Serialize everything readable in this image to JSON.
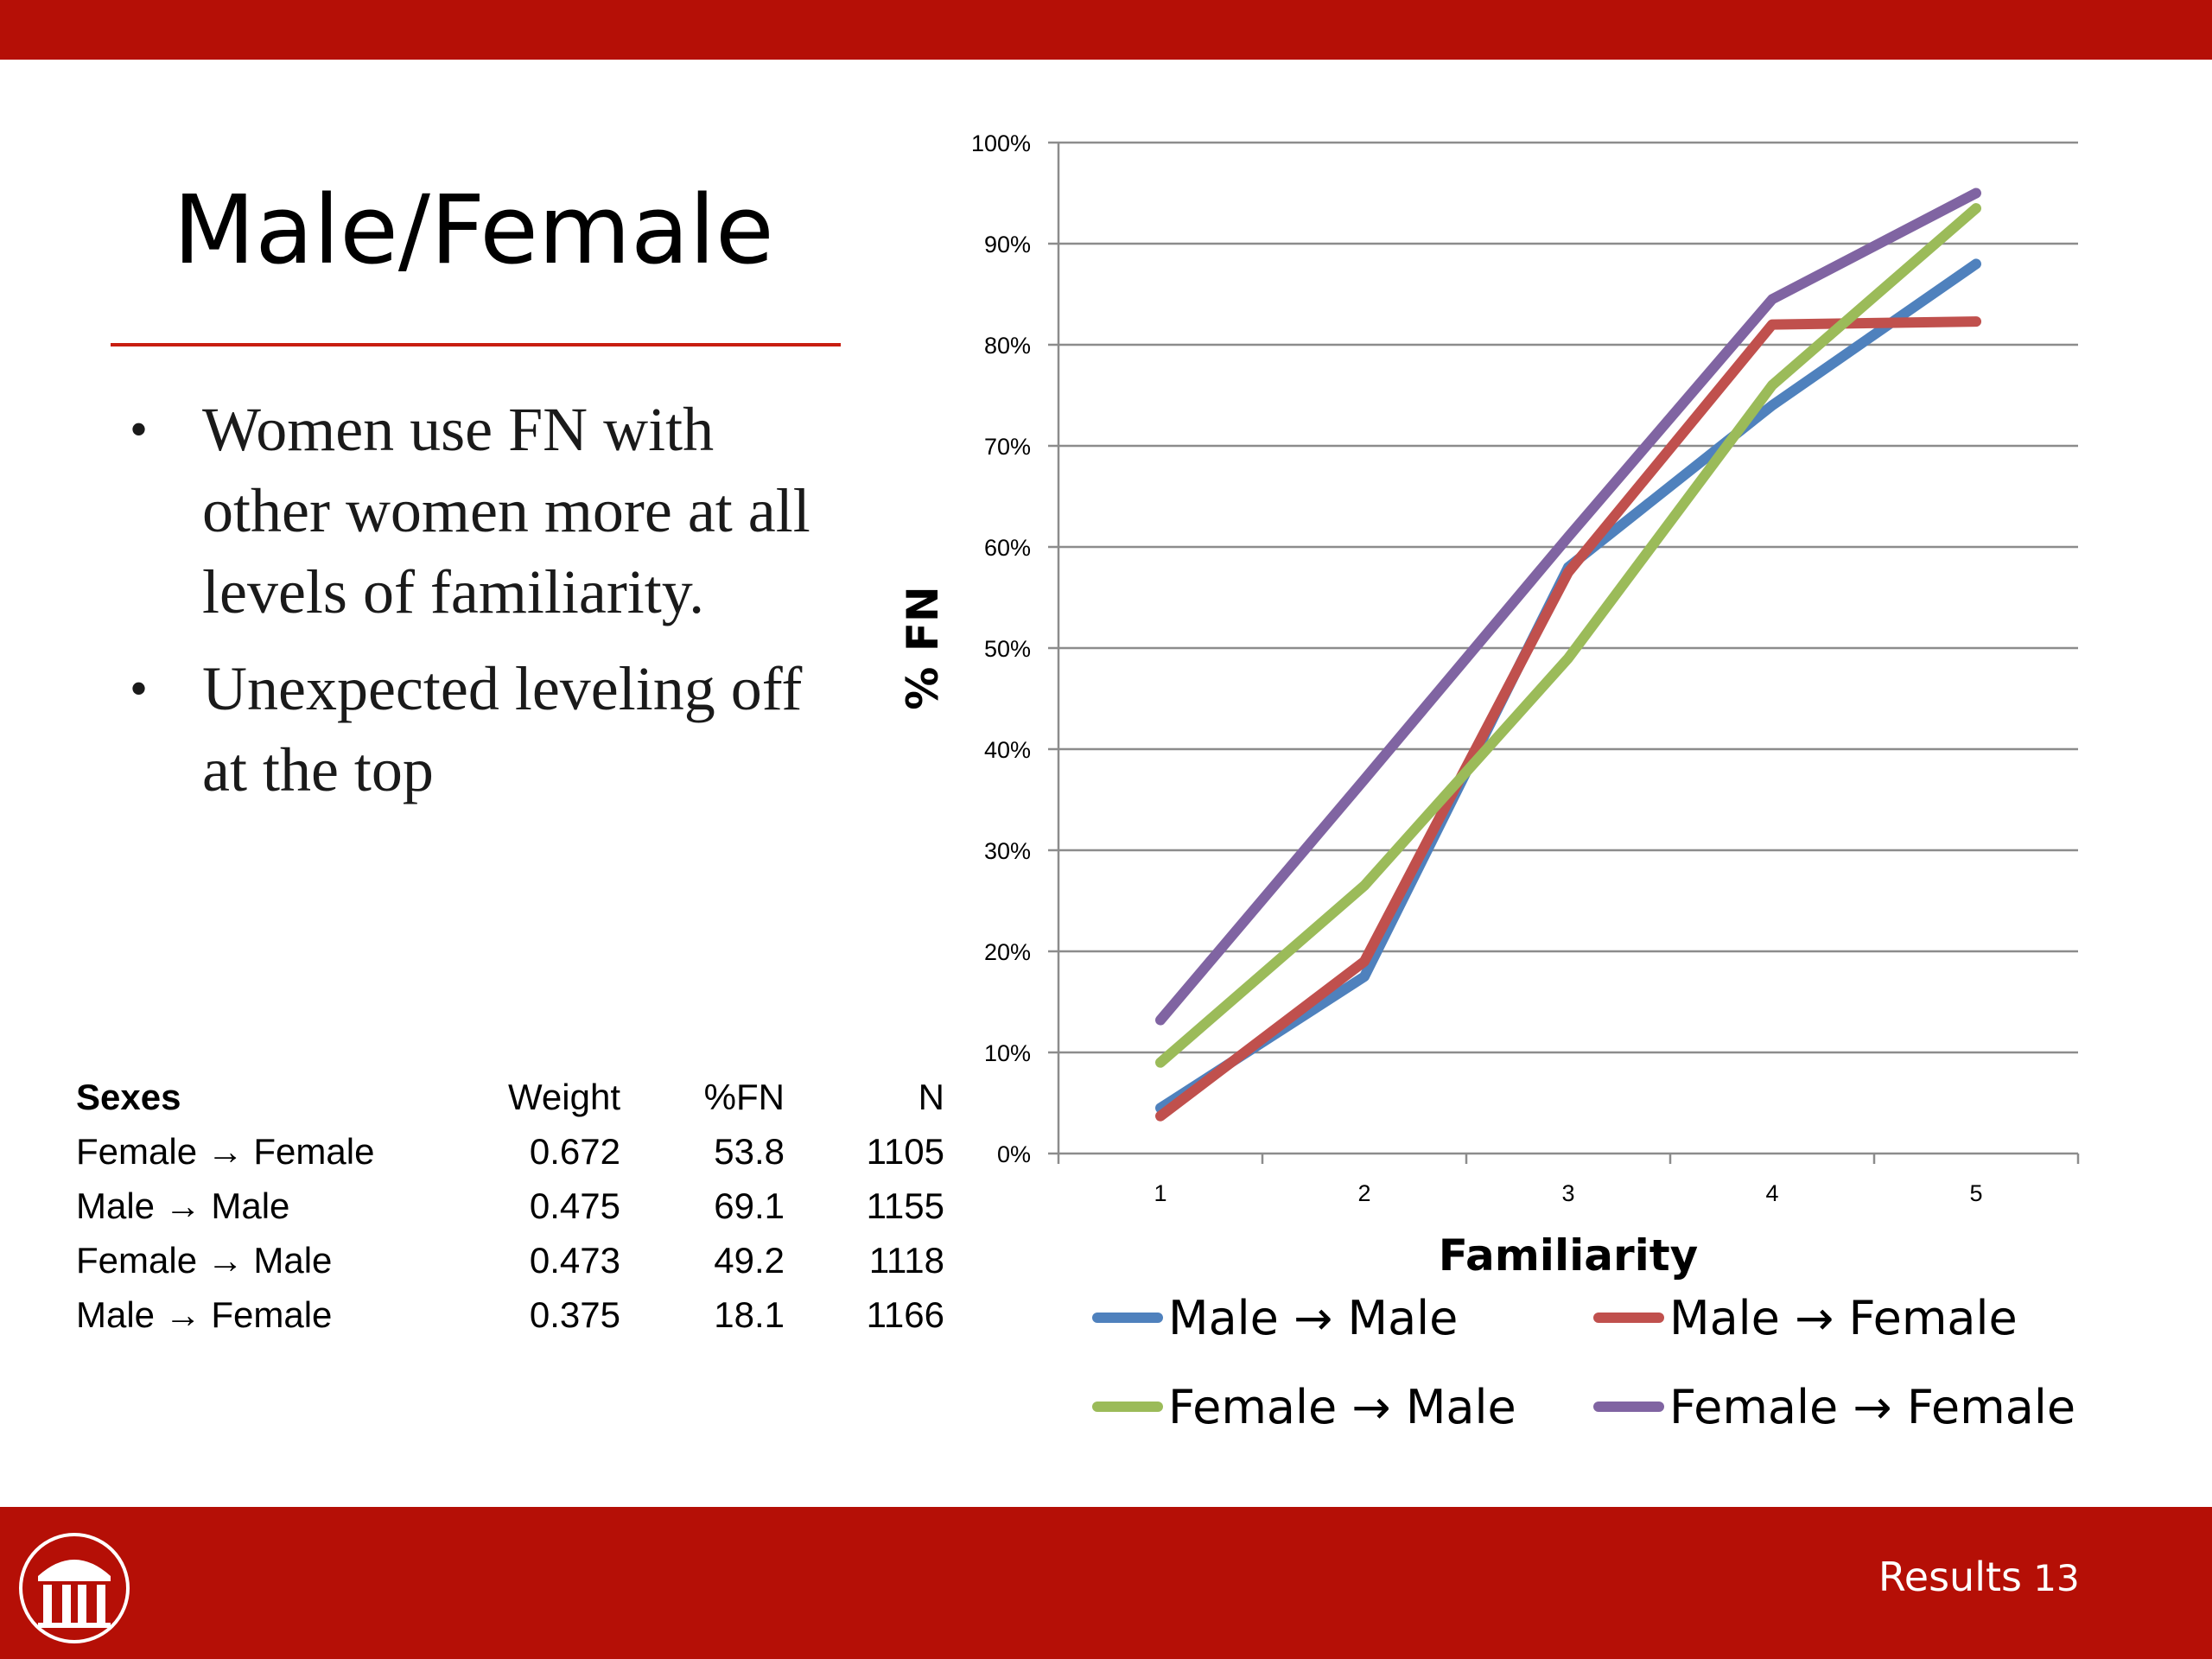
{
  "slide": {
    "title": "Male/Female",
    "bullets": [
      {
        "text": "Women use FN with other women more at all levels of  familiarity."
      },
      {
        "text": "Unexpected leveling off  at the top"
      }
    ],
    "bullet_glyph": "•",
    "footer": {
      "section": "Results",
      "page": "13"
    },
    "colors": {
      "bar": "#b50f06",
      "rule": "#c81e10"
    },
    "logo_icon": "university-arch-logo-icon"
  },
  "table": {
    "headers": [
      "Sexes",
      "Weight",
      "%FN",
      "N"
    ],
    "rows": [
      [
        "Female → Female",
        "0.672",
        "53.8",
        "1105"
      ],
      [
        "Male → Male",
        "0.475",
        "69.1",
        "1155"
      ],
      [
        "Female → Male",
        "0.473",
        "49.2",
        "1118"
      ],
      [
        "Male → Female",
        "0.375",
        "18.1",
        "1166"
      ]
    ]
  },
  "chart_data": {
    "type": "line",
    "title": "",
    "xlabel": "Familiarity",
    "ylabel": "% FN",
    "x": [
      1,
      2,
      3,
      4,
      5
    ],
    "x_tick_labels": [
      "1",
      "2",
      "3",
      "4",
      "5"
    ],
    "y_tick_labels": [
      "0%",
      "10%",
      "20%",
      "30%",
      "40%",
      "50%",
      "60%",
      "70%",
      "80%",
      "90%",
      "100%"
    ],
    "ylim": [
      0,
      100
    ],
    "grid": true,
    "legend_position": "bottom",
    "series": [
      {
        "name": "Male → Male",
        "color": "#4f81bd",
        "values": [
          4.5,
          17.5,
          58,
          74,
          88
        ]
      },
      {
        "name": "Male → Female",
        "color": "#c0504d",
        "values": [
          3.7,
          19,
          57.5,
          82,
          82.3
        ]
      },
      {
        "name": "Female → Male",
        "color": "#9bbb59",
        "values": [
          9,
          26.5,
          49,
          76,
          93.5
        ]
      },
      {
        "name": "Female → Female",
        "color": "#8064a2",
        "values": [
          13.2,
          37,
          61,
          84.5,
          95
        ]
      }
    ]
  }
}
